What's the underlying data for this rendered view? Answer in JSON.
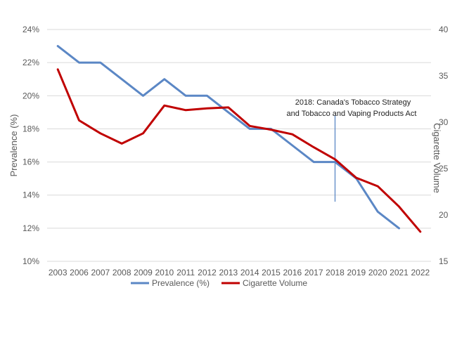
{
  "chart_data": {
    "type": "line",
    "x": [
      "2003",
      "2006",
      "2007",
      "2008",
      "2009",
      "2010",
      "2011",
      "2012",
      "2013",
      "2014",
      "2015",
      "2016",
      "2017",
      "2018",
      "2019",
      "2020",
      "2021",
      "2022"
    ],
    "ylabel": "Prevalence (%)",
    "y2label": "Cigarette Volume",
    "ylim": [
      10,
      24
    ],
    "y_ticks": [
      "10%",
      "12%",
      "14%",
      "16%",
      "18%",
      "20%",
      "22%",
      "24%"
    ],
    "y2lim": [
      15,
      40
    ],
    "y2_ticks": [
      "15",
      "20",
      "25",
      "30",
      "35",
      "40"
    ],
    "grid": true,
    "legend_position": "bottom",
    "series": [
      {
        "name": "Prevalence (%)",
        "axis": "left",
        "color": "#5b87c5",
        "values": [
          23,
          22,
          22,
          21,
          20,
          21,
          20,
          20,
          19,
          18,
          18,
          17,
          16,
          16,
          15,
          13,
          12,
          null
        ]
      },
      {
        "name": "Cigarette Volume",
        "axis": "right",
        "color": "#c00000",
        "values": [
          35.7,
          30.2,
          28.8,
          27.7,
          28.8,
          31.8,
          31.3,
          31.5,
          31.6,
          29.6,
          29.2,
          28.7,
          27.3,
          26.0,
          24.0,
          23.1,
          20.9,
          18.2
        ]
      }
    ],
    "annotation": {
      "x": "2018",
      "lines": [
        "2018: Canada's Tobacco Strategy",
        "and Tobacco and Vaping Products Act"
      ],
      "line_from": 13.6,
      "line_to": 18.8,
      "color": "#5b87c5"
    }
  }
}
